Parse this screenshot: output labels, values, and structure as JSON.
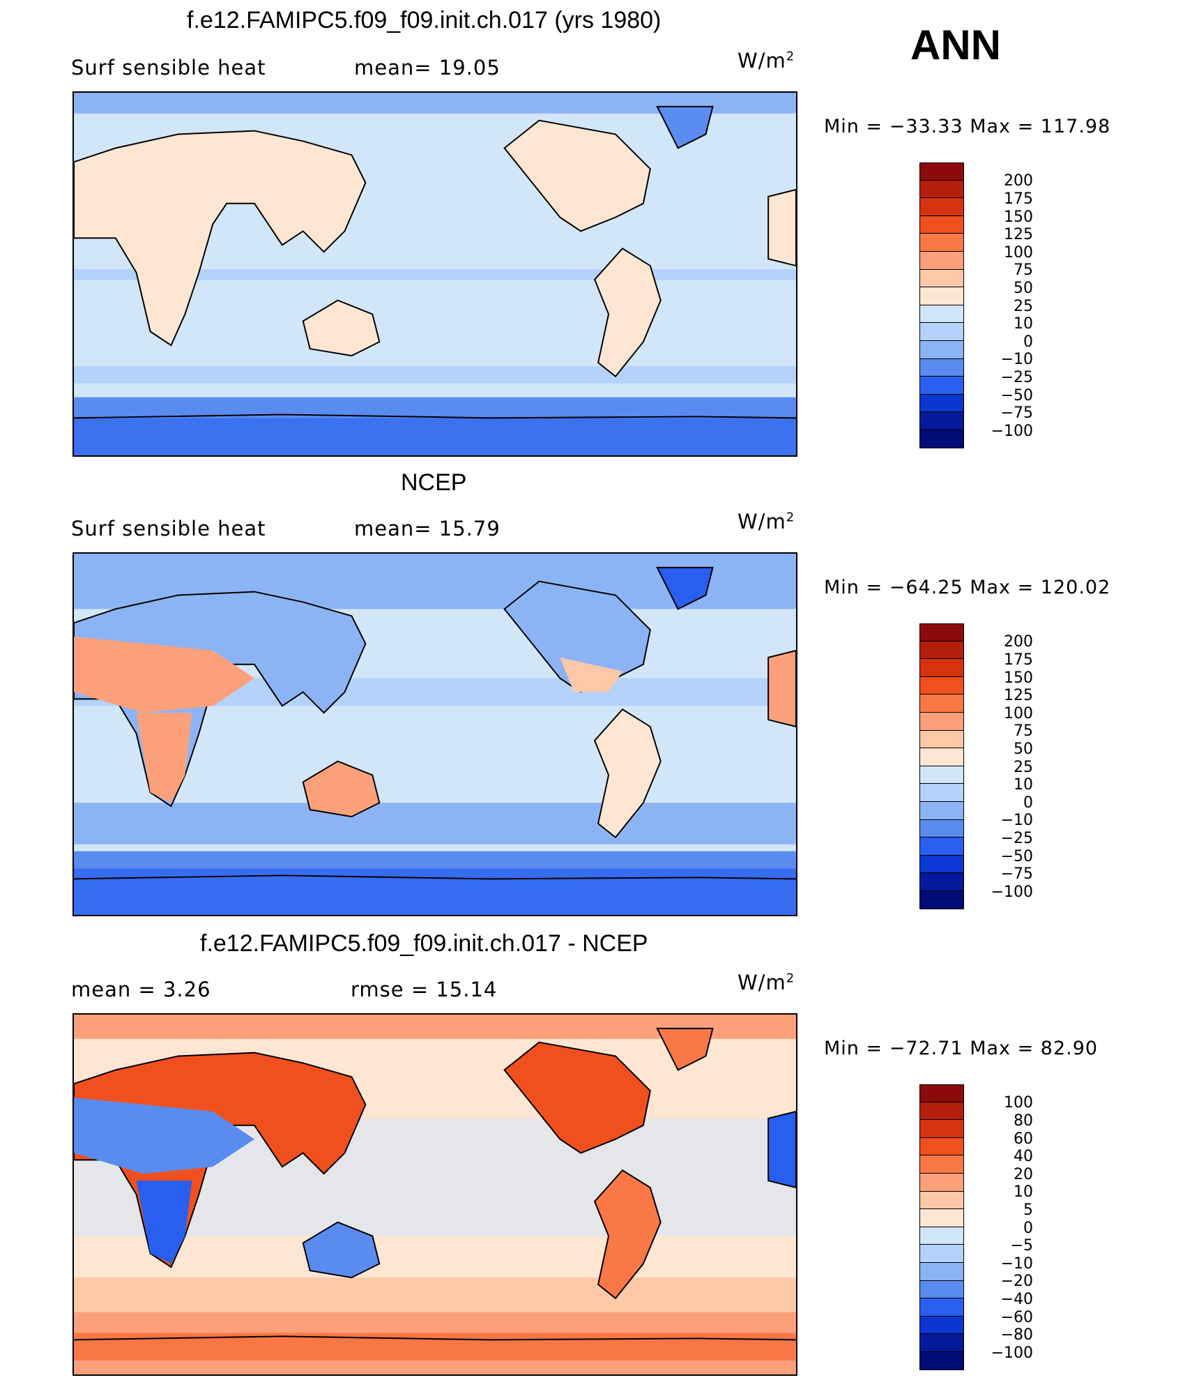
{
  "season": "ANN",
  "panels": [
    {
      "title": "f.e12.FAMIPC5.f09_f09.init.ch.017 (yrs 1980)",
      "left_label": "Surf  sensible  heat",
      "center_label": "mean=   19.05",
      "units_label": "W/m",
      "units_exp": "2",
      "minmax": "Min  =  −33.33  Max  =  117.98",
      "scheme": "field_model",
      "levels": [
        "200",
        "175",
        "150",
        "125",
        "100",
        "75",
        "50",
        "25",
        "10",
        "0",
        "−10",
        "−25",
        "−50",
        "−75",
        "−100"
      ]
    },
    {
      "title": "NCEP",
      "left_label": "Surf  sensible  heat",
      "center_label": "mean=   15.79",
      "units_label": "W/m",
      "units_exp": "2",
      "minmax": "Min  =  −64.25  Max  =  120.02",
      "scheme": "field_obs",
      "levels": [
        "200",
        "175",
        "150",
        "125",
        "100",
        "75",
        "50",
        "25",
        "10",
        "0",
        "−10",
        "−25",
        "−50",
        "−75",
        "−100"
      ]
    },
    {
      "title": "f.e12.FAMIPC5.f09_f09.init.ch.017 - NCEP",
      "left_label": "mean  =       3.26",
      "center_label": "rmse  =     15.14",
      "units_label": "W/m",
      "units_exp": "2",
      "minmax": "Min  =  −72.71  Max  =    82.90",
      "scheme": "difference",
      "levels": [
        "100",
        "80",
        "60",
        "40",
        "20",
        "10",
        "5",
        "0",
        "−5",
        "−10",
        "−20",
        "−40",
        "−60",
        "−80",
        "−100"
      ]
    }
  ],
  "colorbar_colors": [
    "#8c0a0a",
    "#b51e0a",
    "#d7320f",
    "#f0501e",
    "#fa7846",
    "#fca07c",
    "#fdc8a8",
    "#fee6d2",
    "#d2e6fa",
    "#b4d2fa",
    "#8cb4f5",
    "#5a8cf0",
    "#285ff0",
    "#0a37d2",
    "#05199b",
    "#000c78"
  ],
  "map_palette": {
    "ocean_light": "#d2e6fa",
    "ocean_mid": "#b4d2fa",
    "ocean_blue": "#8cb4f5",
    "polar_blue": "#5a8cf0",
    "polar_deep": "#285ff0",
    "land_warm": "#fee6d2",
    "land_orange": "#fdc8a8",
    "land_hot": "#fca07c",
    "diff_warm": "#fa7846",
    "diff_hot": "#f0501e"
  }
}
